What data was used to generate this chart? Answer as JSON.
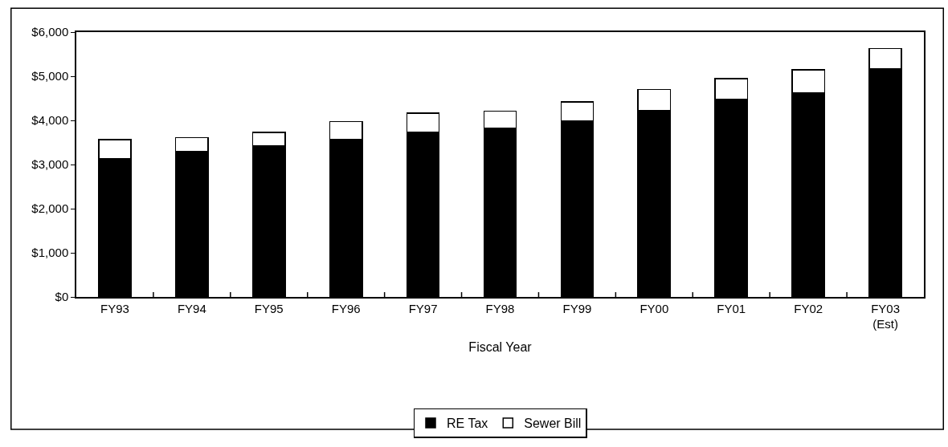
{
  "chart_data": {
    "type": "bar",
    "stacked": true,
    "xlabel": "Fiscal Year",
    "categories": [
      "FY93",
      "FY94",
      "FY95",
      "FY96",
      "FY97",
      "FY98",
      "FY99",
      "FY00",
      "FY01",
      "FY02",
      "FY03\n(Est)"
    ],
    "series": [
      {
        "name": "RE Tax",
        "color": "#000000",
        "values": [
          3130,
          3290,
          3420,
          3570,
          3730,
          3820,
          3980,
          4230,
          4470,
          4630,
          5160
        ]
      },
      {
        "name": "Sewer Bill",
        "color": "#ffffff",
        "values": [
          435,
          320,
          305,
          400,
          435,
          390,
          435,
          470,
          480,
          520,
          470
        ]
      }
    ],
    "ylim": [
      0,
      6000
    ],
    "yticks": [
      {
        "value": 0,
        "label": "$0"
      },
      {
        "value": 1000,
        "label": "$1,000"
      },
      {
        "value": 2000,
        "label": "$2,000"
      },
      {
        "value": 3000,
        "label": "$3,000"
      },
      {
        "value": 4000,
        "label": "$4,000"
      },
      {
        "value": 5000,
        "label": "$5,000"
      },
      {
        "value": 6000,
        "label": "$6,000"
      }
    ],
    "grid": false,
    "legend": "bottom"
  }
}
